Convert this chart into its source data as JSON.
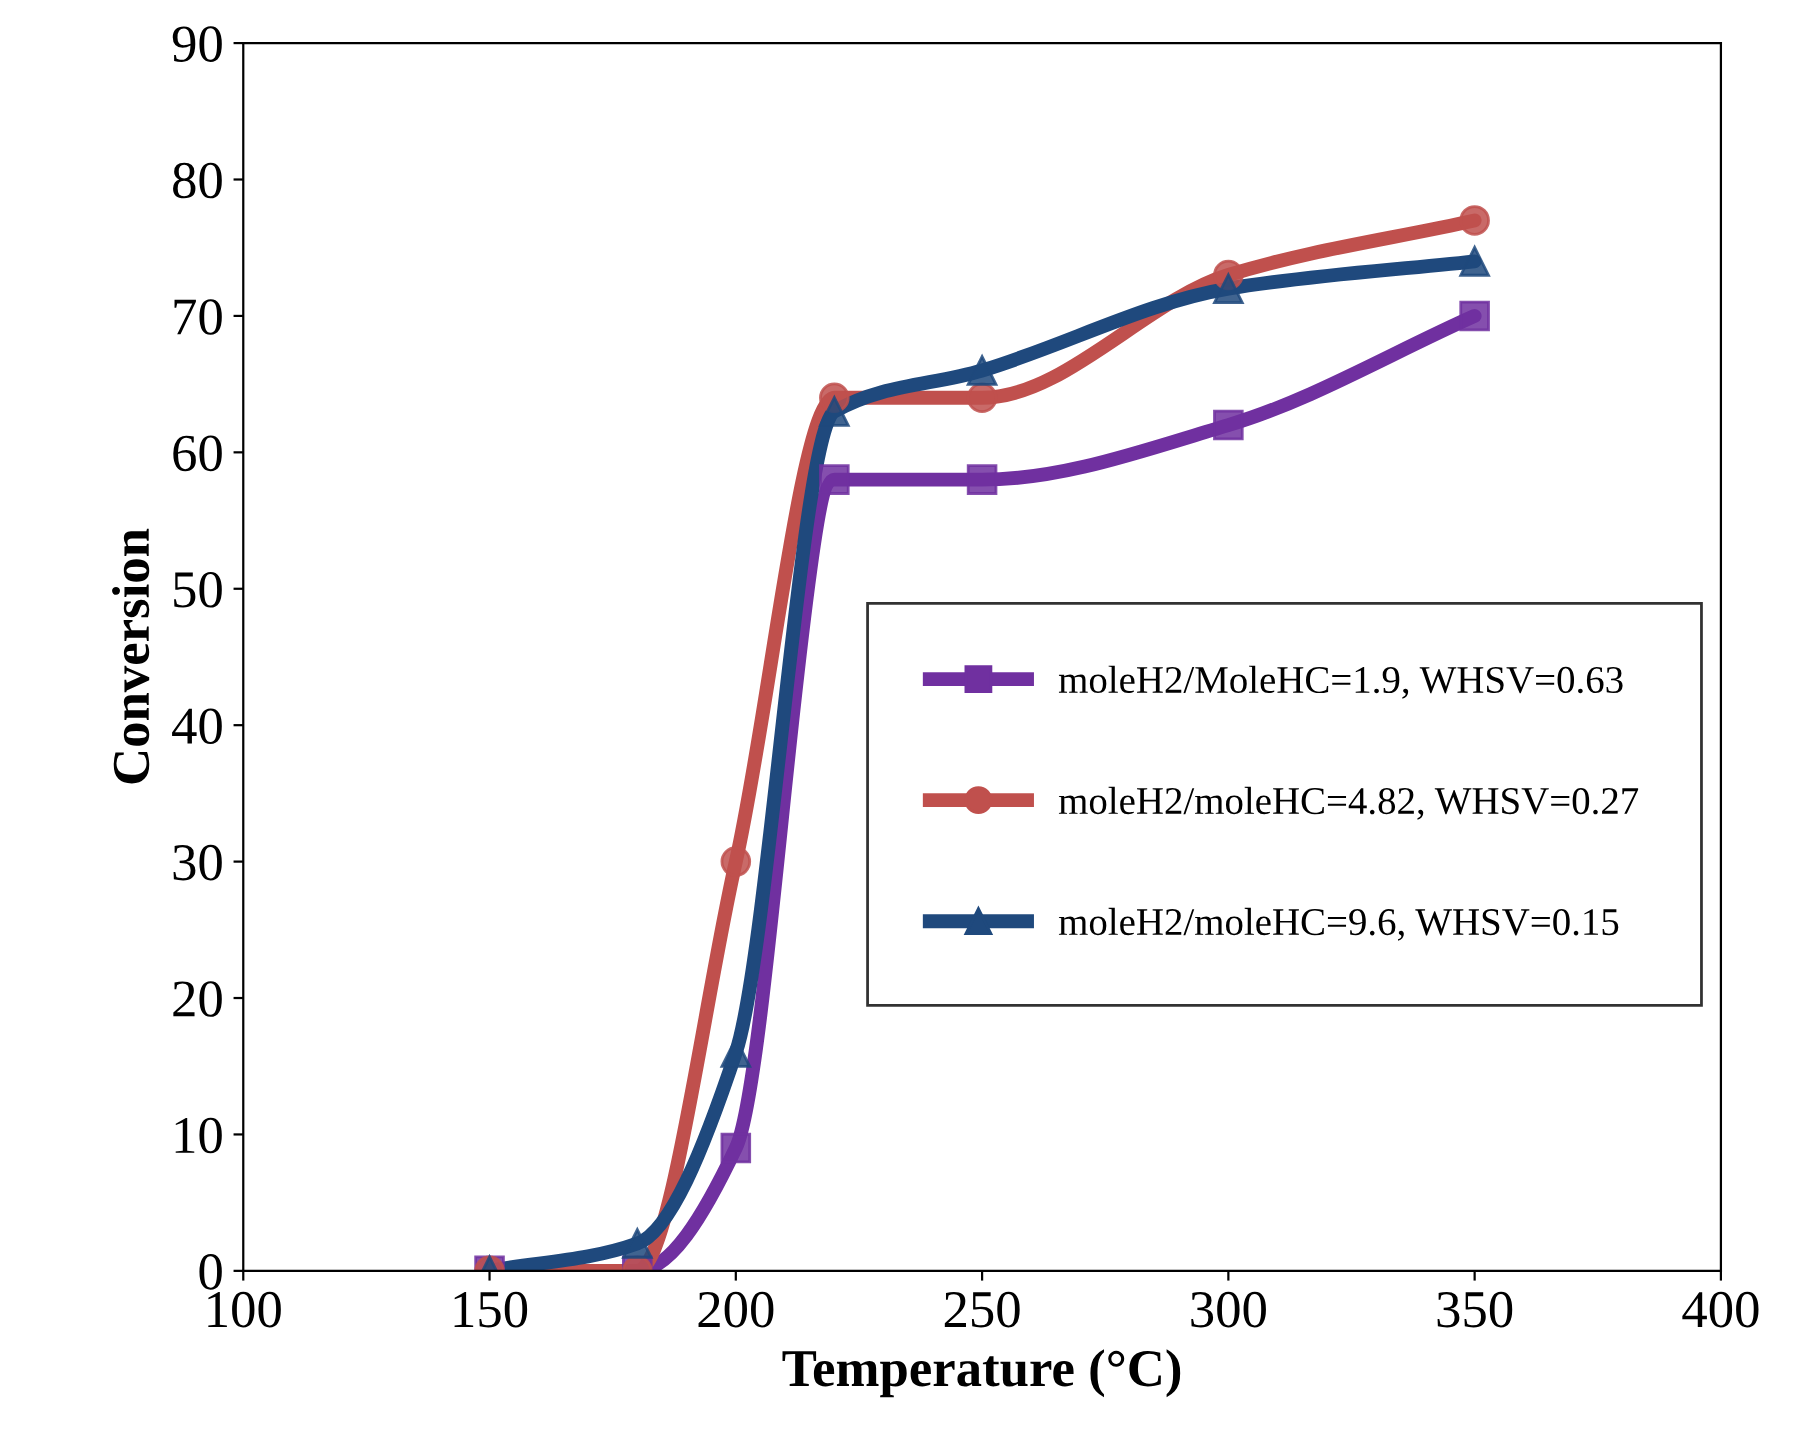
{
  "chart_data": {
    "type": "line",
    "xlabel": "Temperature (°C)",
    "ylabel": "Conversion",
    "x": [
      150,
      180,
      200,
      220,
      250,
      300,
      350
    ],
    "series": [
      {
        "name": "moleH2/MoleHC=1.9, WHSV=0.63",
        "color": "#7030a0",
        "marker": "square",
        "values": [
          0,
          0,
          9,
          58,
          58,
          62,
          70
        ]
      },
      {
        "name": "moleH2/moleHC=4.82, WHSV=0.27",
        "color": "#c0504d",
        "marker": "circle",
        "values": [
          0,
          0,
          30,
          64,
          64,
          73,
          77
        ]
      },
      {
        "name": "moleH2/moleHC=9.6, WHSV=0.15",
        "color": "#1f497d",
        "marker": "triangle",
        "values": [
          0,
          2,
          16,
          63,
          66,
          72,
          74
        ]
      }
    ],
    "xlim": [
      100,
      400
    ],
    "xticks": [
      100,
      150,
      200,
      250,
      300,
      350,
      400
    ],
    "ylim": [
      0,
      90
    ],
    "yticks": [
      0,
      10,
      20,
      30,
      40,
      50,
      60,
      70,
      80,
      90
    ],
    "grid": false,
    "legend": "right",
    "line_style": "solid"
  }
}
